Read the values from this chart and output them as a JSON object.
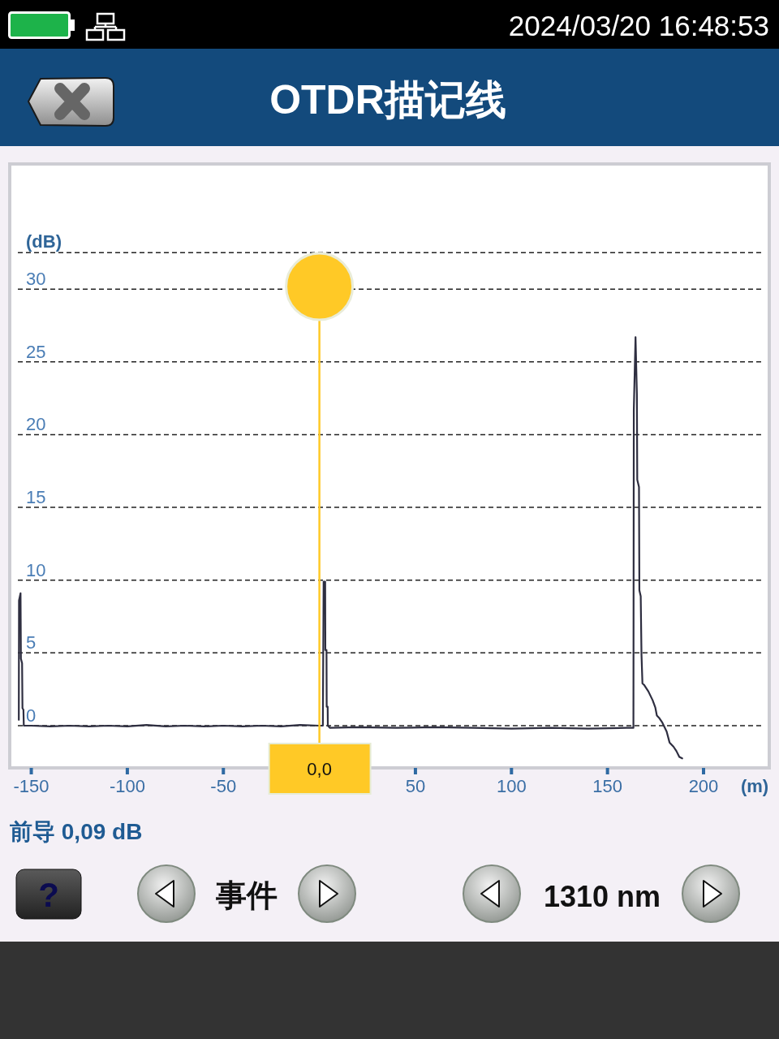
{
  "chart_data": {
    "type": "line",
    "title": "OTDR描记线",
    "xlabel": "(m)",
    "ylabel": "(dB)",
    "x": [
      -156.5,
      -156.4,
      -155.6,
      -155.4,
      -154.8,
      -154.6,
      -154.1,
      -153.9,
      -150,
      -140,
      -130,
      -120,
      -110,
      -100,
      -90,
      -80,
      -70,
      -60,
      -50,
      -40,
      -30,
      -20,
      -10,
      0,
      1.8,
      2.2,
      3.0,
      3.1,
      3.7,
      3.8,
      4.3,
      4.4,
      5.5,
      20,
      40,
      60,
      80,
      100,
      120,
      140,
      160,
      163.5,
      163.7,
      164.6,
      165.3,
      165.5,
      166.4,
      166.6,
      167.3,
      167.7,
      168.2,
      169.1,
      171.3,
      173.5,
      174.9,
      175.7,
      177.1,
      178.6,
      180.8,
      182.3,
      184.4,
      185.9,
      187.4,
      188.9
    ],
    "series": [
      {
        "color": "#2e2e40",
        "values": [
          0.4,
          8.6,
          9.1,
          4.6,
          4.3,
          1.2,
          1.1,
          0.0,
          0.0,
          -0.05,
          0.0,
          -0.05,
          0.0,
          -0.05,
          0.05,
          -0.05,
          0.0,
          -0.05,
          0.0,
          -0.05,
          0.0,
          -0.05,
          0.05,
          0.0,
          0.0,
          9.9,
          9.9,
          5.2,
          5.2,
          1.3,
          1.3,
          0.0,
          -0.15,
          -0.1,
          -0.15,
          -0.1,
          -0.15,
          -0.2,
          -0.15,
          -0.2,
          -0.15,
          -0.15,
          21.7,
          26.7,
          22.8,
          16.9,
          16.4,
          9.3,
          8.9,
          4.9,
          2.9,
          2.8,
          2.35,
          1.75,
          1.25,
          0.7,
          0.5,
          0.2,
          -0.4,
          -1.15,
          -1.45,
          -1.75,
          -2.15,
          -2.25
        ]
      }
    ],
    "xlim": [
      -157,
      230
    ],
    "ylim": [
      -2.9,
      38.6
    ],
    "xticks": [
      -150,
      -100,
      -50,
      50,
      100,
      150,
      200
    ],
    "yticks": [
      0,
      5,
      10,
      15,
      20,
      25,
      30,
      {
        "value": 32.5,
        "label": null
      }
    ],
    "grid": "y",
    "ref_lines": [
      {
        "axis": "x",
        "value": 0,
        "label": "0,0",
        "color": "#ffc926"
      }
    ],
    "annotations": [
      "2024/03/20 16:48:53",
      "前导 0,09 dB",
      "?",
      "事件",
      "1310 nm"
    ]
  }
}
